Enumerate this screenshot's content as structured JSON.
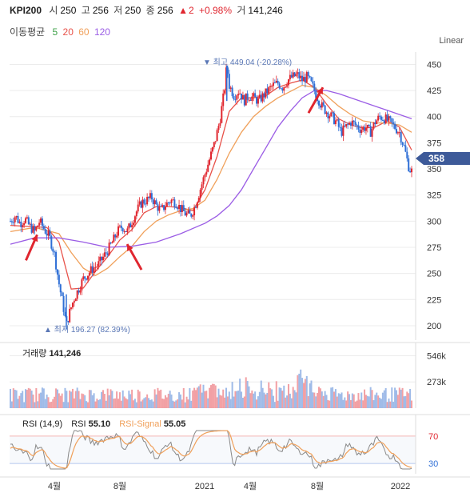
{
  "header": {
    "symbol": "KPI200",
    "open_label": "시",
    "open": "250",
    "high_label": "고",
    "high": "256",
    "low_label": "저",
    "low": "250",
    "close_label": "종",
    "close": "256",
    "change_arrow": "▲",
    "change": "2",
    "change_pct": "+0.98%",
    "volume_label": "거",
    "volume": "141,246"
  },
  "moving_average": {
    "label": "이동평균",
    "periods": [
      "5",
      "20",
      "60",
      "120"
    ],
    "colors": [
      "#3fa24a",
      "#e8524a",
      "#f0a05a",
      "#9b5de5"
    ]
  },
  "scale_label": "Linear",
  "price_panel": {
    "high_marker": "▼ 최고 449.04 (-20.28%)",
    "low_marker": "▲ 최저 196.27 (82.39%)",
    "current_price": "358"
  },
  "volume_panel": {
    "label": "거래량",
    "value": "141,246",
    "ticks": [
      "546k",
      "273k"
    ]
  },
  "rsi_panel": {
    "label": "RSI (14,9)",
    "rsi_label": "RSI",
    "rsi_value": "55.10",
    "signal_label": "RSI-Signal",
    "signal_value": "55.05",
    "ticks": [
      "70",
      "30"
    ]
  },
  "colors": {
    "up": "#e0262f",
    "down": "#2f6fd6",
    "rsi": "#888888",
    "signal": "#f0a05a",
    "price_tag": "#3d5a99",
    "annotation_arrow": "#e0262f"
  },
  "chart_data": {
    "type": "candlestick",
    "x_ticks": [
      "4월",
      "8월",
      "2021",
      "4월",
      "8월",
      "2022"
    ],
    "y_ticks": [
      200,
      225,
      250,
      275,
      300,
      325,
      350,
      375,
      400,
      425,
      450
    ],
    "ylim": [
      190,
      458
    ],
    "scale": "linear",
    "grid": true,
    "price_path": [
      [
        0,
        300
      ],
      [
        4,
        305
      ],
      [
        8,
        298
      ],
      [
        12,
        302
      ],
      [
        16,
        295
      ],
      [
        20,
        290
      ],
      [
        24,
        300
      ],
      [
        28,
        292
      ],
      [
        32,
        285
      ],
      [
        36,
        270
      ],
      [
        40,
        240
      ],
      [
        44,
        215
      ],
      [
        46,
        200
      ],
      [
        48,
        210
      ],
      [
        52,
        225
      ],
      [
        56,
        235
      ],
      [
        60,
        245
      ],
      [
        64,
        250
      ],
      [
        68,
        255
      ],
      [
        72,
        258
      ],
      [
        76,
        265
      ],
      [
        80,
        272
      ],
      [
        84,
        280
      ],
      [
        88,
        290
      ],
      [
        92,
        295
      ],
      [
        96,
        290
      ],
      [
        100,
        300
      ],
      [
        104,
        310
      ],
      [
        108,
        318
      ],
      [
        112,
        320
      ],
      [
        116,
        323
      ],
      [
        120,
        315
      ],
      [
        124,
        310
      ],
      [
        128,
        316
      ],
      [
        132,
        320
      ],
      [
        136,
        318
      ],
      [
        140,
        312
      ],
      [
        144,
        307
      ],
      [
        148,
        305
      ],
      [
        152,
        315
      ],
      [
        156,
        330
      ],
      [
        160,
        345
      ],
      [
        164,
        360
      ],
      [
        168,
        375
      ],
      [
        172,
        395
      ],
      [
        176,
        425
      ],
      [
        178,
        449
      ],
      [
        180,
        430
      ],
      [
        184,
        420
      ],
      [
        188,
        425
      ],
      [
        192,
        415
      ],
      [
        196,
        420
      ],
      [
        200,
        418
      ],
      [
        204,
        415
      ],
      [
        208,
        420
      ],
      [
        212,
        425
      ],
      [
        216,
        430
      ],
      [
        220,
        432
      ],
      [
        224,
        428
      ],
      [
        228,
        435
      ],
      [
        232,
        438
      ],
      [
        236,
        440
      ],
      [
        240,
        435
      ],
      [
        244,
        438
      ],
      [
        248,
        430
      ],
      [
        252,
        420
      ],
      [
        256,
        410
      ],
      [
        260,
        405
      ],
      [
        264,
        400
      ],
      [
        268,
        395
      ],
      [
        272,
        385
      ],
      [
        276,
        390
      ],
      [
        280,
        395
      ],
      [
        284,
        392
      ],
      [
        288,
        388
      ],
      [
        292,
        390
      ],
      [
        296,
        385
      ],
      [
        300,
        395
      ],
      [
        304,
        400
      ],
      [
        308,
        398
      ],
      [
        312,
        395
      ],
      [
        316,
        390
      ],
      [
        320,
        385
      ],
      [
        324,
        370
      ],
      [
        328,
        350
      ],
      [
        330,
        348
      ]
    ],
    "moving_averages": {
      "ma20": [
        [
          0,
          296
        ],
        [
          30,
          294
        ],
        [
          40,
          280
        ],
        [
          50,
          235
        ],
        [
          60,
          236
        ],
        [
          70,
          252
        ],
        [
          80,
          266
        ],
        [
          90,
          282
        ],
        [
          100,
          292
        ],
        [
          110,
          308
        ],
        [
          120,
          314
        ],
        [
          130,
          314
        ],
        [
          140,
          313
        ],
        [
          150,
          310
        ],
        [
          160,
          330
        ],
        [
          170,
          362
        ],
        [
          180,
          405
        ],
        [
          190,
          418
        ],
        [
          200,
          418
        ],
        [
          210,
          420
        ],
        [
          220,
          428
        ],
        [
          230,
          432
        ],
        [
          240,
          435
        ],
        [
          250,
          428
        ],
        [
          260,
          412
        ],
        [
          270,
          398
        ],
        [
          280,
          392
        ],
        [
          290,
          389
        ],
        [
          300,
          390
        ],
        [
          310,
          396
        ],
        [
          320,
          390
        ],
        [
          330,
          368
        ]
      ],
      "ma60": [
        [
          0,
          290
        ],
        [
          20,
          294
        ],
        [
          40,
          288
        ],
        [
          50,
          270
        ],
        [
          60,
          255
        ],
        [
          70,
          248
        ],
        [
          80,
          255
        ],
        [
          90,
          266
        ],
        [
          100,
          276
        ],
        [
          110,
          290
        ],
        [
          120,
          300
        ],
        [
          130,
          306
        ],
        [
          140,
          310
        ],
        [
          150,
          312
        ],
        [
          160,
          320
        ],
        [
          170,
          340
        ],
        [
          180,
          365
        ],
        [
          190,
          385
        ],
        [
          200,
          400
        ],
        [
          210,
          410
        ],
        [
          220,
          418
        ],
        [
          230,
          424
        ],
        [
          240,
          430
        ],
        [
          250,
          428
        ],
        [
          260,
          420
        ],
        [
          270,
          410
        ],
        [
          280,
          402
        ],
        [
          290,
          396
        ],
        [
          300,
          394
        ],
        [
          310,
          394
        ],
        [
          320,
          392
        ],
        [
          330,
          385
        ]
      ],
      "ma120": [
        [
          0,
          278
        ],
        [
          20,
          284
        ],
        [
          40,
          284
        ],
        [
          60,
          280
        ],
        [
          80,
          275
        ],
        [
          100,
          276
        ],
        [
          120,
          280
        ],
        [
          140,
          288
        ],
        [
          160,
          298
        ],
        [
          170,
          305
        ],
        [
          180,
          315
        ],
        [
          190,
          330
        ],
        [
          200,
          350
        ],
        [
          210,
          370
        ],
        [
          220,
          390
        ],
        [
          230,
          405
        ],
        [
          240,
          418
        ],
        [
          250,
          425
        ],
        [
          260,
          425
        ],
        [
          270,
          422
        ],
        [
          280,
          418
        ],
        [
          290,
          414
        ],
        [
          300,
          410
        ],
        [
          310,
          406
        ],
        [
          320,
          402
        ],
        [
          330,
          398
        ]
      ]
    },
    "annotations": [
      {
        "type": "arrow",
        "x": 22,
        "y": 287
      },
      {
        "type": "arrow",
        "x": 96,
        "y": 278
      },
      {
        "type": "arrow",
        "x": 257,
        "y": 428
      }
    ],
    "volume": {
      "ylim": [
        0,
        600
      ],
      "ticks": [
        546,
        273
      ]
    },
    "rsi": {
      "ylim": [
        15,
        85
      ],
      "levels": [
        70,
        30
      ]
    }
  }
}
